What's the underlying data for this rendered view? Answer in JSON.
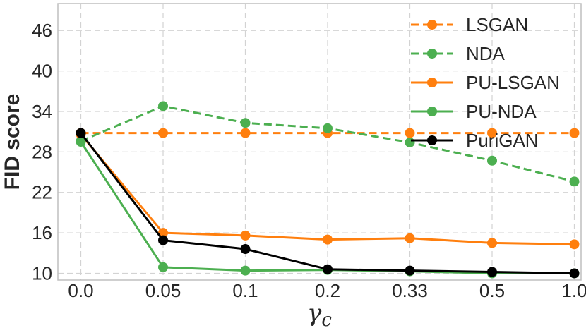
{
  "chart_data": {
    "type": "line",
    "xlabel": "γ",
    "xlabel_sub": "c",
    "ylabel": "FID score",
    "categories": [
      "0.0",
      "0.05",
      "0.1",
      "0.2",
      "0.33",
      "0.5",
      "1.0"
    ],
    "yticks": [
      10,
      16,
      22,
      28,
      34,
      40,
      46
    ],
    "ylim": [
      9,
      50
    ],
    "grid": true,
    "legend_position": "top-right",
    "series": [
      {
        "name": "LSGAN",
        "color": "#ff7f0e",
        "dashed": true,
        "values": [
          30.8,
          30.8,
          30.8,
          30.8,
          30.8,
          30.8,
          30.8
        ]
      },
      {
        "name": "NDA",
        "color": "#4caf50",
        "dashed": true,
        "values": [
          29.6,
          34.8,
          32.3,
          31.5,
          29.4,
          26.7,
          23.6
        ]
      },
      {
        "name": "PU-LSGAN",
        "color": "#ff7f0e",
        "dashed": false,
        "values": [
          30.6,
          16.0,
          15.6,
          15.0,
          15.2,
          14.5,
          14.3
        ]
      },
      {
        "name": "PU-NDA",
        "color": "#4caf50",
        "dashed": false,
        "values": [
          29.5,
          10.9,
          10.4,
          10.5,
          10.3,
          10.0,
          10.0
        ]
      },
      {
        "name": "PuriGAN",
        "color": "#000000",
        "dashed": false,
        "values": [
          30.8,
          14.9,
          13.6,
          10.6,
          10.4,
          10.2,
          10.0
        ]
      }
    ]
  }
}
